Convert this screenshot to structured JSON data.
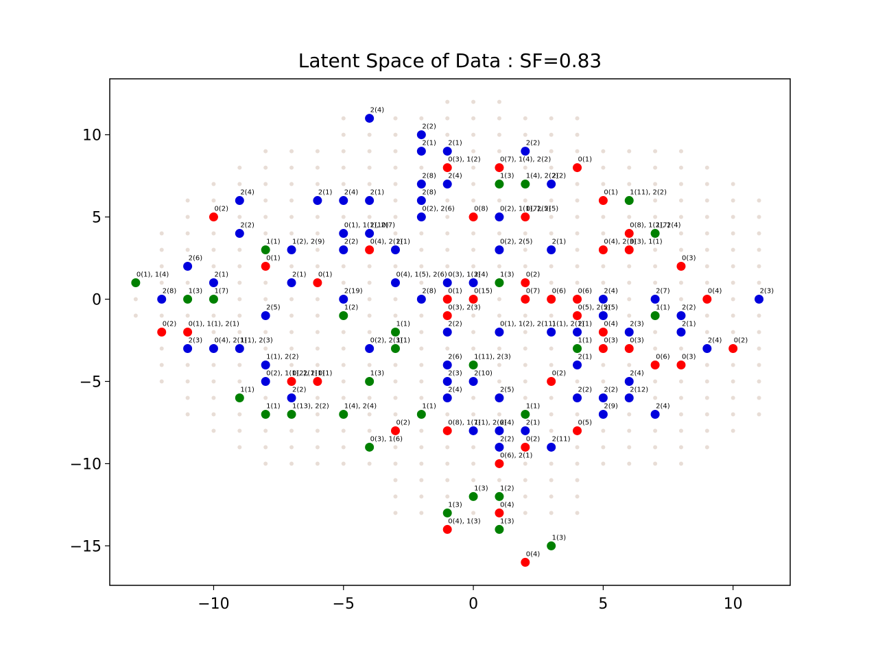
{
  "chart_data": {
    "type": "scatter",
    "title": "Latent Space of Data : SF=0.83",
    "xlabel": "",
    "ylabel": "",
    "xlim": [
      -14.0,
      12.2
    ],
    "ylim": [
      -17.4,
      13.4
    ],
    "xticks": [
      -10,
      -5,
      0,
      5,
      10
    ],
    "yticks": [
      -15,
      -10,
      -5,
      0,
      5,
      10
    ],
    "xtick_labels": [
      "−10",
      "−5",
      "0",
      "5",
      "10"
    ],
    "ytick_labels": [
      "−15",
      "−10",
      "−5",
      "0",
      "5",
      "10"
    ],
    "grid": false,
    "colors": {
      "red": "#ff0000",
      "blue": "#0000dd",
      "green": "#008000",
      "grid_point": "#e8ddd6"
    },
    "points": [
      {
        "x": -4,
        "y": 11,
        "c": "blue",
        "label": "2(4)"
      },
      {
        "x": -2,
        "y": 10,
        "c": "blue",
        "label": "2(2)"
      },
      {
        "x": -2,
        "y": 9,
        "c": "blue",
        "label": "2(1)"
      },
      {
        "x": -1,
        "y": 9,
        "c": "blue",
        "label": "2(1)"
      },
      {
        "x": 2,
        "y": 9,
        "c": "blue",
        "label": "2(2)"
      },
      {
        "x": -1,
        "y": 8,
        "c": "red",
        "label": "0(3), 1(2)"
      },
      {
        "x": 1,
        "y": 8,
        "c": "red",
        "label": "0(7), 1(4), 2(2)"
      },
      {
        "x": 4,
        "y": 8,
        "c": "red",
        "label": "0(1)"
      },
      {
        "x": -2,
        "y": 7,
        "c": "blue",
        "label": "2(8)"
      },
      {
        "x": -1,
        "y": 7,
        "c": "blue",
        "label": "2(4)"
      },
      {
        "x": 1,
        "y": 7,
        "c": "green",
        "label": "1(3)"
      },
      {
        "x": 2,
        "y": 7,
        "c": "green",
        "label": "1(4), 2(2)"
      },
      {
        "x": 3,
        "y": 7,
        "c": "blue",
        "label": "2(2)"
      },
      {
        "x": -9,
        "y": 6,
        "c": "blue",
        "label": "2(4)"
      },
      {
        "x": -6,
        "y": 6,
        "c": "blue",
        "label": "2(1)"
      },
      {
        "x": -5,
        "y": 6,
        "c": "blue",
        "label": "2(4)"
      },
      {
        "x": -4,
        "y": 6,
        "c": "blue",
        "label": "2(1)"
      },
      {
        "x": -2,
        "y": 6,
        "c": "blue",
        "label": "2(8)"
      },
      {
        "x": 5,
        "y": 6,
        "c": "red",
        "label": "0(1)"
      },
      {
        "x": 6,
        "y": 6,
        "c": "green",
        "label": "1(11), 2(2)"
      },
      {
        "x": -10,
        "y": 5,
        "c": "red",
        "label": "0(2)"
      },
      {
        "x": -2,
        "y": 5,
        "c": "blue",
        "label": "0(2), 2(6)"
      },
      {
        "x": 0,
        "y": 5,
        "c": "red",
        "label": "0(8)"
      },
      {
        "x": 1,
        "y": 5,
        "c": "blue",
        "label": "0(2), 1(1), 2(5)"
      },
      {
        "x": 2,
        "y": 5,
        "c": "red",
        "label": "0(7), 2(5)"
      },
      {
        "x": -9,
        "y": 4,
        "c": "blue",
        "label": "2(2)"
      },
      {
        "x": -5,
        "y": 4,
        "c": "blue",
        "label": "0(1), 1(1), 2(7)"
      },
      {
        "x": -4,
        "y": 4,
        "c": "blue",
        "label": "2(10)"
      },
      {
        "x": 6,
        "y": 4,
        "c": "red",
        "label": "0(8), 1(2), 2(4)"
      },
      {
        "x": 7,
        "y": 4,
        "c": "green",
        "label": "1(7)"
      },
      {
        "x": -8,
        "y": 3,
        "c": "green",
        "label": "1(1)"
      },
      {
        "x": -7,
        "y": 3,
        "c": "blue",
        "label": "1(2), 2(9)"
      },
      {
        "x": -5,
        "y": 3,
        "c": "blue",
        "label": "2(2)"
      },
      {
        "x": -4,
        "y": 3,
        "c": "red",
        "label": "0(4), 2(1)"
      },
      {
        "x": -3,
        "y": 3,
        "c": "blue",
        "label": "2(1)"
      },
      {
        "x": 1,
        "y": 3,
        "c": "blue",
        "label": "0(2), 2(5)"
      },
      {
        "x": 3,
        "y": 3,
        "c": "blue",
        "label": "2(1)"
      },
      {
        "x": 5,
        "y": 3,
        "c": "red",
        "label": "0(4), 2(3)"
      },
      {
        "x": 6,
        "y": 3,
        "c": "red",
        "label": "0(3), 1(1)"
      },
      {
        "x": -11,
        "y": 2,
        "c": "blue",
        "label": "2(6)"
      },
      {
        "x": -8,
        "y": 2,
        "c": "red",
        "label": "0(1)"
      },
      {
        "x": 8,
        "y": 2,
        "c": "red",
        "label": "0(3)"
      },
      {
        "x": -13,
        "y": 1,
        "c": "green",
        "label": "0(1), 1(4)"
      },
      {
        "x": -10,
        "y": 1,
        "c": "blue",
        "label": "2(1)"
      },
      {
        "x": -7,
        "y": 1,
        "c": "blue",
        "label": "2(1)"
      },
      {
        "x": -6,
        "y": 1,
        "c": "red",
        "label": "0(1)"
      },
      {
        "x": -3,
        "y": 1,
        "c": "blue",
        "label": "0(4), 1(5), 2(6)"
      },
      {
        "x": -1,
        "y": 1,
        "c": "blue",
        "label": "0(3), 1(3)"
      },
      {
        "x": 0,
        "y": 1,
        "c": "blue",
        "label": "2(4)"
      },
      {
        "x": 1,
        "y": 1,
        "c": "green",
        "label": "1(3)"
      },
      {
        "x": 2,
        "y": 1,
        "c": "red",
        "label": "0(2)"
      },
      {
        "x": -12,
        "y": 0,
        "c": "blue",
        "label": "2(8)"
      },
      {
        "x": -11,
        "y": 0,
        "c": "green",
        "label": "1(3)"
      },
      {
        "x": -10,
        "y": 0,
        "c": "green",
        "label": "1(7)"
      },
      {
        "x": -5,
        "y": 0,
        "c": "blue",
        "label": "2(19)"
      },
      {
        "x": -2,
        "y": 0,
        "c": "blue",
        "label": "2(8)"
      },
      {
        "x": -1,
        "y": 0,
        "c": "red",
        "label": "0(1)"
      },
      {
        "x": 0,
        "y": 0,
        "c": "red",
        "label": "0(15)"
      },
      {
        "x": 2,
        "y": 0,
        "c": "red",
        "label": "0(7)"
      },
      {
        "x": 3,
        "y": 0,
        "c": "red",
        "label": "0(6)"
      },
      {
        "x": 4,
        "y": 0,
        "c": "red",
        "label": "0(6)"
      },
      {
        "x": 5,
        "y": 0,
        "c": "blue",
        "label": "2(4)"
      },
      {
        "x": 7,
        "y": 0,
        "c": "blue",
        "label": "2(7)"
      },
      {
        "x": 9,
        "y": 0,
        "c": "red",
        "label": "0(4)"
      },
      {
        "x": 11,
        "y": 0,
        "c": "blue",
        "label": "2(3)"
      },
      {
        "x": -8,
        "y": -1,
        "c": "blue",
        "label": "2(5)"
      },
      {
        "x": -5,
        "y": -1,
        "c": "green",
        "label": "1(2)"
      },
      {
        "x": -1,
        "y": -1,
        "c": "red",
        "label": "0(3), 2(3)"
      },
      {
        "x": 4,
        "y": -1,
        "c": "red",
        "label": "0(5), 2(5)"
      },
      {
        "x": 5,
        "y": -1,
        "c": "blue",
        "label": "2(5)"
      },
      {
        "x": 7,
        "y": -1,
        "c": "green",
        "label": "1(1)"
      },
      {
        "x": 8,
        "y": -1,
        "c": "blue",
        "label": "2(2)"
      },
      {
        "x": -12,
        "y": -2,
        "c": "red",
        "label": "0(2)"
      },
      {
        "x": -11,
        "y": -2,
        "c": "red",
        "label": "0(1), 1(1), 2(1)"
      },
      {
        "x": -3,
        "y": -2,
        "c": "green",
        "label": "1(1)"
      },
      {
        "x": -1,
        "y": -2,
        "c": "blue",
        "label": "2(2)"
      },
      {
        "x": 1,
        "y": -2,
        "c": "blue",
        "label": "0(1), 1(2), 2(11)"
      },
      {
        "x": 3,
        "y": -2,
        "c": "blue",
        "label": "1(1), 2(1)"
      },
      {
        "x": 4,
        "y": -2,
        "c": "blue",
        "label": "2(1)"
      },
      {
        "x": 5,
        "y": -2,
        "c": "red",
        "label": "0(4)"
      },
      {
        "x": 6,
        "y": -2,
        "c": "blue",
        "label": "2(3)"
      },
      {
        "x": 8,
        "y": -2,
        "c": "blue",
        "label": "2(1)"
      },
      {
        "x": -11,
        "y": -3,
        "c": "blue",
        "label": "2(3)"
      },
      {
        "x": -10,
        "y": -3,
        "c": "blue",
        "label": "0(4), 2(1)"
      },
      {
        "x": -9,
        "y": -3,
        "c": "blue",
        "label": "1(1), 2(3)"
      },
      {
        "x": -4,
        "y": -3,
        "c": "blue",
        "label": "0(2), 2(3)"
      },
      {
        "x": -3,
        "y": -3,
        "c": "green",
        "label": "1(1)"
      },
      {
        "x": 4,
        "y": -3,
        "c": "green",
        "label": "1(1)"
      },
      {
        "x": 5,
        "y": -3,
        "c": "red",
        "label": "0(3)"
      },
      {
        "x": 6,
        "y": -3,
        "c": "red",
        "label": "0(3)"
      },
      {
        "x": 9,
        "y": -3,
        "c": "blue",
        "label": "2(4)"
      },
      {
        "x": 10,
        "y": -3,
        "c": "red",
        "label": "0(2)"
      },
      {
        "x": -8,
        "y": -4,
        "c": "blue",
        "label": "1(1), 2(2)"
      },
      {
        "x": -1,
        "y": -4,
        "c": "blue",
        "label": "2(6)"
      },
      {
        "x": 0,
        "y": -4,
        "c": "green",
        "label": "1(11), 2(3)"
      },
      {
        "x": 4,
        "y": -4,
        "c": "blue",
        "label": "2(1)"
      },
      {
        "x": 7,
        "y": -4,
        "c": "red",
        "label": "0(6)"
      },
      {
        "x": 8,
        "y": -4,
        "c": "red",
        "label": "0(3)"
      },
      {
        "x": -8,
        "y": -5,
        "c": "blue",
        "label": "0(2), 1(1), 2(1)"
      },
      {
        "x": -7,
        "y": -5,
        "c": "red",
        "label": "0(2), 2(1)"
      },
      {
        "x": -6,
        "y": -5,
        "c": "red",
        "label": "0(1)"
      },
      {
        "x": -4,
        "y": -5,
        "c": "green",
        "label": "1(3)"
      },
      {
        "x": -1,
        "y": -5,
        "c": "blue",
        "label": "2(3)"
      },
      {
        "x": 0,
        "y": -5,
        "c": "blue",
        "label": "2(10)"
      },
      {
        "x": 3,
        "y": -5,
        "c": "red",
        "label": "0(2)"
      },
      {
        "x": 6,
        "y": -5,
        "c": "blue",
        "label": "2(4)"
      },
      {
        "x": -9,
        "y": -6,
        "c": "green",
        "label": "1(1)"
      },
      {
        "x": -7,
        "y": -6,
        "c": "blue",
        "label": "2(2)"
      },
      {
        "x": -1,
        "y": -6,
        "c": "blue",
        "label": "2(4)"
      },
      {
        "x": 1,
        "y": -6,
        "c": "blue",
        "label": "2(5)"
      },
      {
        "x": 4,
        "y": -6,
        "c": "blue",
        "label": "2(2)"
      },
      {
        "x": 5,
        "y": -6,
        "c": "blue",
        "label": "2(2)"
      },
      {
        "x": 6,
        "y": -6,
        "c": "blue",
        "label": "2(12)"
      },
      {
        "x": -8,
        "y": -7,
        "c": "green",
        "label": "1(1)"
      },
      {
        "x": -7,
        "y": -7,
        "c": "green",
        "label": "1(13), 2(2)"
      },
      {
        "x": -5,
        "y": -7,
        "c": "green",
        "label": "1(4), 2(4)"
      },
      {
        "x": -2,
        "y": -7,
        "c": "green",
        "label": "1(1)"
      },
      {
        "x": 2,
        "y": -7,
        "c": "green",
        "label": "1(1)"
      },
      {
        "x": 5,
        "y": -7,
        "c": "blue",
        "label": "2(9)"
      },
      {
        "x": 7,
        "y": -7,
        "c": "blue",
        "label": "2(4)"
      },
      {
        "x": -3,
        "y": -8,
        "c": "red",
        "label": "0(2)"
      },
      {
        "x": -1,
        "y": -8,
        "c": "red",
        "label": "0(8), 1(7)"
      },
      {
        "x": 0,
        "y": -8,
        "c": "blue",
        "label": "1(1), 2(6)"
      },
      {
        "x": 1,
        "y": -8,
        "c": "blue",
        "label": "2(4)"
      },
      {
        "x": 2,
        "y": -8,
        "c": "blue",
        "label": "2(1)"
      },
      {
        "x": 4,
        "y": -8,
        "c": "red",
        "label": "0(5)"
      },
      {
        "x": -4,
        "y": -9,
        "c": "green",
        "label": "0(3), 1(6)"
      },
      {
        "x": 1,
        "y": -9,
        "c": "blue",
        "label": "2(2)"
      },
      {
        "x": 2,
        "y": -9,
        "c": "red",
        "label": "0(2)"
      },
      {
        "x": 3,
        "y": -9,
        "c": "blue",
        "label": "2(11)"
      },
      {
        "x": 1,
        "y": -10,
        "c": "red",
        "label": "0(6), 2(1)"
      },
      {
        "x": 0,
        "y": -12,
        "c": "green",
        "label": "1(3)"
      },
      {
        "x": 1,
        "y": -12,
        "c": "green",
        "label": "1(2)"
      },
      {
        "x": -1,
        "y": -13,
        "c": "green",
        "label": "1(3)"
      },
      {
        "x": 1,
        "y": -13,
        "c": "red",
        "label": "0(4)"
      },
      {
        "x": -1,
        "y": -14,
        "c": "red",
        "label": "0(4), 1(3)"
      },
      {
        "x": 1,
        "y": -14,
        "c": "green",
        "label": "1(3)"
      },
      {
        "x": 3,
        "y": -15,
        "c": "green",
        "label": "1(3)"
      },
      {
        "x": 2,
        "y": -16,
        "c": "red",
        "label": "0(4)"
      }
    ]
  }
}
